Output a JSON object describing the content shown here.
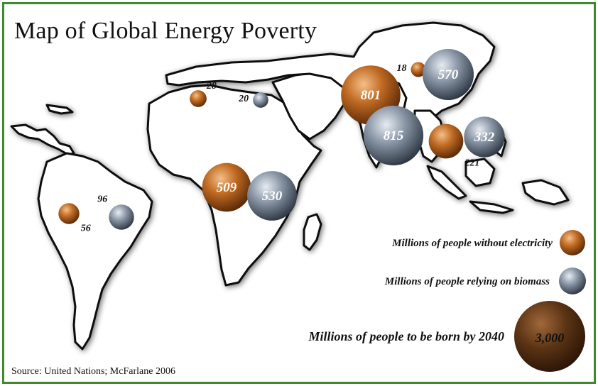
{
  "title": "Map of Global Energy Poverty",
  "source": "Source: United Nations; McFarlane 2006",
  "colors": {
    "border": "#3f8a2c",
    "electricity": "#b8641e",
    "biomass": "#7f8a99",
    "born": "#4a2a10"
  },
  "legend": {
    "electricity": "Millions of people without electricity",
    "biomass": "Millions of people relying on biomass",
    "born": "Millions of people to be born by 2040",
    "born_value": "3,000"
  },
  "bubbles": [
    {
      "id": "south-america-electricity",
      "type": "electricity",
      "value": 56,
      "label": "56"
    },
    {
      "id": "south-america-biomass",
      "type": "biomass",
      "value": 96,
      "label": "96"
    },
    {
      "id": "north-africa-electricity",
      "type": "electricity",
      "value": 28,
      "label": "28"
    },
    {
      "id": "middle-east-biomass",
      "type": "biomass",
      "value": 20,
      "label": "20"
    },
    {
      "id": "sub-saharan-africa-electricity",
      "type": "electricity",
      "value": 509,
      "label": "509"
    },
    {
      "id": "sub-saharan-africa-biomass",
      "type": "biomass",
      "value": 530,
      "label": "530"
    },
    {
      "id": "south-asia-electricity",
      "type": "electricity",
      "value": 801,
      "label": "801"
    },
    {
      "id": "south-asia-biomass",
      "type": "biomass",
      "value": 815,
      "label": "815"
    },
    {
      "id": "china-electricity",
      "type": "electricity",
      "value": 18,
      "label": "18"
    },
    {
      "id": "china-biomass",
      "type": "biomass",
      "value": 570,
      "label": "570"
    },
    {
      "id": "southeast-asia-electricity",
      "type": "electricity",
      "value": 221,
      "label": "221"
    },
    {
      "id": "southeast-asia-biomass",
      "type": "biomass",
      "value": 332,
      "label": "332"
    }
  ]
}
